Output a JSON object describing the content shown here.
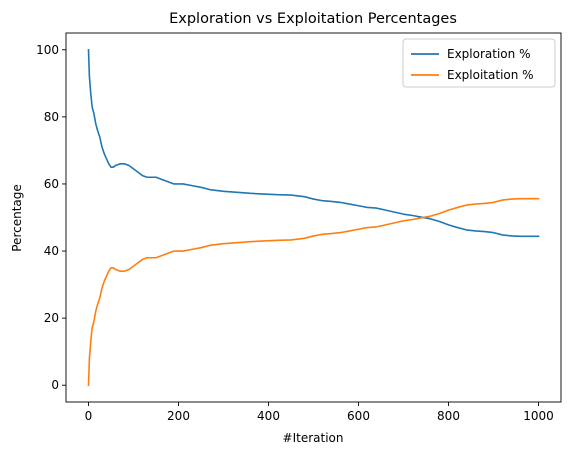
{
  "chart_data": {
    "type": "line",
    "title": "Exploration vs Exploitation Percentages",
    "xlabel": "#Iteration",
    "ylabel": "Percentage",
    "xlim": [
      -50,
      1050
    ],
    "ylim": [
      -5,
      105
    ],
    "xticks": [
      0,
      200,
      400,
      600,
      800,
      1000
    ],
    "yticks": [
      0,
      20,
      40,
      60,
      80,
      100
    ],
    "grid": false,
    "legend_position": "top-right",
    "series": [
      {
        "name": "Exploration %",
        "color": "#1f77b4",
        "points": [
          [
            0,
            100
          ],
          [
            2,
            92
          ],
          [
            5,
            87
          ],
          [
            8,
            83
          ],
          [
            12,
            81
          ],
          [
            16,
            78
          ],
          [
            20,
            76
          ],
          [
            25,
            74
          ],
          [
            30,
            71
          ],
          [
            35,
            69
          ],
          [
            40,
            67.5
          ],
          [
            45,
            66
          ],
          [
            50,
            65
          ],
          [
            55,
            65
          ],
          [
            60,
            65.5
          ],
          [
            70,
            66
          ],
          [
            80,
            66
          ],
          [
            90,
            65.5
          ],
          [
            100,
            64.5
          ],
          [
            110,
            63.5
          ],
          [
            120,
            62.5
          ],
          [
            130,
            62
          ],
          [
            150,
            62
          ],
          [
            170,
            61
          ],
          [
            190,
            60
          ],
          [
            210,
            60
          ],
          [
            230,
            59.5
          ],
          [
            250,
            59
          ],
          [
            270,
            58.3
          ],
          [
            300,
            57.8
          ],
          [
            330,
            57.5
          ],
          [
            360,
            57.2
          ],
          [
            390,
            57
          ],
          [
            420,
            56.8
          ],
          [
            450,
            56.7
          ],
          [
            480,
            56.2
          ],
          [
            500,
            55.5
          ],
          [
            520,
            55
          ],
          [
            540,
            54.8
          ],
          [
            560,
            54.5
          ],
          [
            580,
            54
          ],
          [
            600,
            53.5
          ],
          [
            620,
            53
          ],
          [
            640,
            52.8
          ],
          [
            660,
            52.2
          ],
          [
            680,
            51.6
          ],
          [
            700,
            51
          ],
          [
            720,
            50.6
          ],
          [
            740,
            50.1
          ],
          [
            760,
            49.6
          ],
          [
            780,
            48.8
          ],
          [
            800,
            47.8
          ],
          [
            820,
            47
          ],
          [
            840,
            46.3
          ],
          [
            860,
            46
          ],
          [
            880,
            45.8
          ],
          [
            900,
            45.5
          ],
          [
            920,
            44.8
          ],
          [
            940,
            44.5
          ],
          [
            960,
            44.4
          ],
          [
            980,
            44.4
          ],
          [
            1000,
            44.4
          ]
        ]
      },
      {
        "name": "Exploitation %",
        "color": "#ff7f0e",
        "points": [
          [
            0,
            0
          ],
          [
            2,
            8
          ],
          [
            5,
            13
          ],
          [
            8,
            17
          ],
          [
            12,
            19
          ],
          [
            16,
            22
          ],
          [
            20,
            24
          ],
          [
            25,
            26
          ],
          [
            30,
            29
          ],
          [
            35,
            31
          ],
          [
            40,
            32.5
          ],
          [
            45,
            34
          ],
          [
            50,
            35
          ],
          [
            55,
            35
          ],
          [
            60,
            34.5
          ],
          [
            70,
            34
          ],
          [
            80,
            34
          ],
          [
            90,
            34.5
          ],
          [
            100,
            35.5
          ],
          [
            110,
            36.5
          ],
          [
            120,
            37.5
          ],
          [
            130,
            38
          ],
          [
            150,
            38
          ],
          [
            170,
            39
          ],
          [
            190,
            40
          ],
          [
            210,
            40
          ],
          [
            230,
            40.5
          ],
          [
            250,
            41
          ],
          [
            270,
            41.7
          ],
          [
            300,
            42.2
          ],
          [
            330,
            42.5
          ],
          [
            360,
            42.8
          ],
          [
            390,
            43
          ],
          [
            420,
            43.2
          ],
          [
            450,
            43.3
          ],
          [
            480,
            43.8
          ],
          [
            500,
            44.5
          ],
          [
            520,
            45
          ],
          [
            540,
            45.2
          ],
          [
            560,
            45.5
          ],
          [
            580,
            46
          ],
          [
            600,
            46.5
          ],
          [
            620,
            47
          ],
          [
            640,
            47.2
          ],
          [
            660,
            47.8
          ],
          [
            680,
            48.4
          ],
          [
            700,
            49
          ],
          [
            720,
            49.4
          ],
          [
            740,
            49.9
          ],
          [
            760,
            50.4
          ],
          [
            780,
            51.2
          ],
          [
            800,
            52.2
          ],
          [
            820,
            53
          ],
          [
            840,
            53.7
          ],
          [
            860,
            54
          ],
          [
            880,
            54.2
          ],
          [
            900,
            54.5
          ],
          [
            920,
            55.2
          ],
          [
            940,
            55.5
          ],
          [
            960,
            55.6
          ],
          [
            980,
            55.6
          ],
          [
            1000,
            55.6
          ]
        ]
      }
    ]
  },
  "style": {
    "axis_color": "#000000",
    "background": "#ffffff",
    "legend_border": "#cccccc"
  }
}
